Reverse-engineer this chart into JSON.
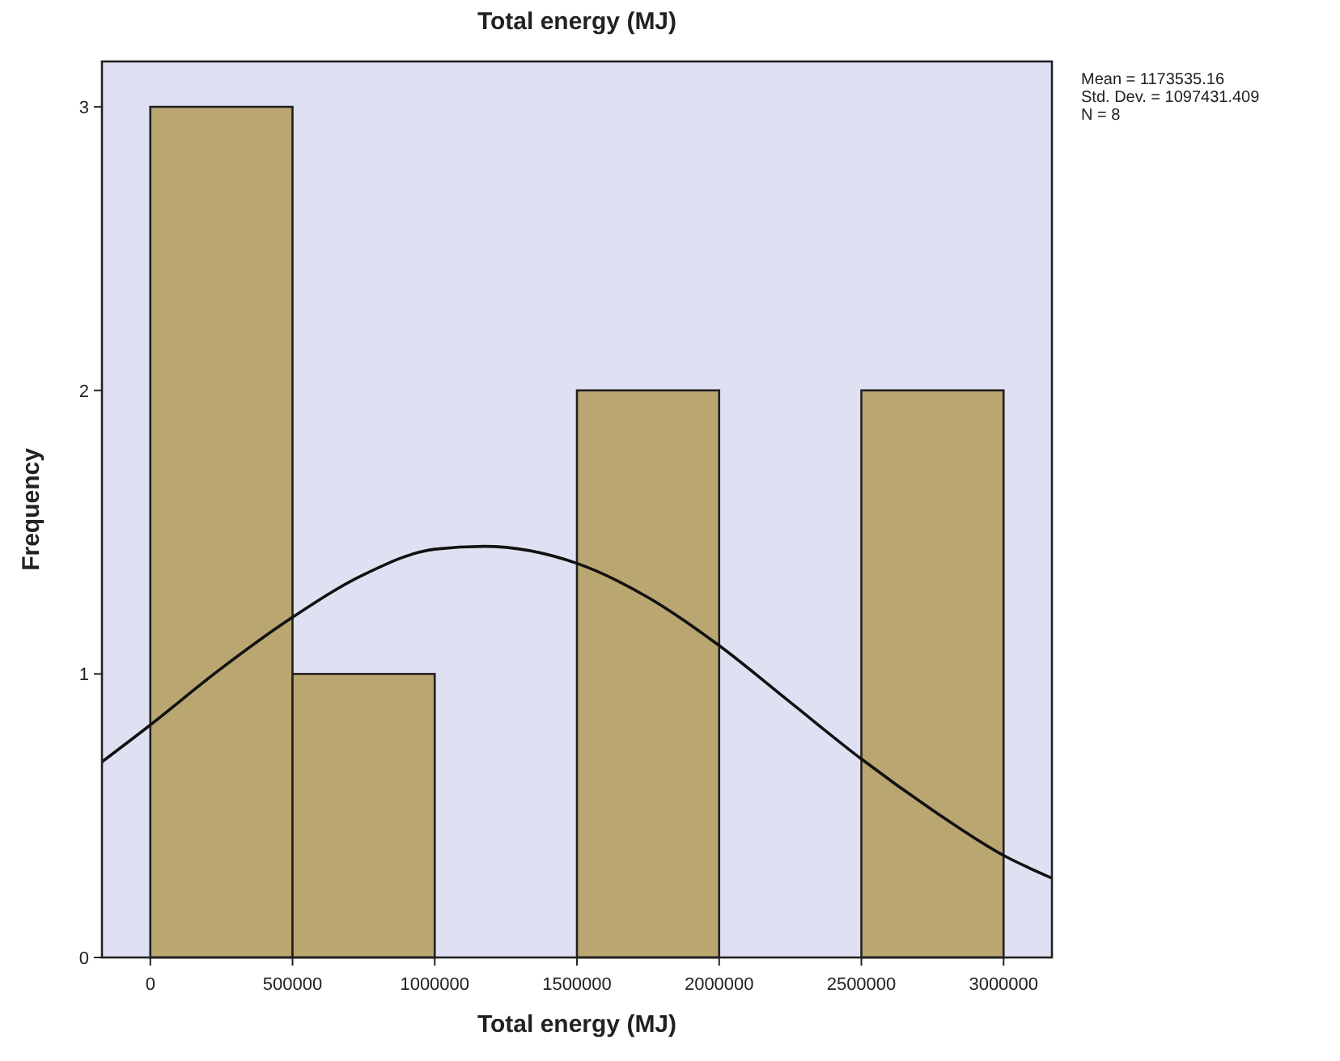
{
  "chart_data": {
    "type": "histogram",
    "title": "Total energy (MJ)",
    "xlabel": "Total energy (MJ)",
    "ylabel": "Frequency",
    "bins": [
      0,
      500000,
      1000000,
      1500000,
      2000000,
      2500000,
      3000000
    ],
    "values": [
      3,
      1,
      0,
      2,
      0,
      2
    ],
    "color": "#b9a670",
    "series": [
      {
        "type": "line",
        "color": "#111111",
        "x": [
          -170000,
          0,
          250000,
          500000,
          750000,
          1000000,
          1173535,
          1500000,
          1750000,
          2000000,
          2250000,
          2500000,
          2750000,
          3000000,
          3170000
        ],
        "values": [
          0.69,
          0.82,
          1.02,
          1.2,
          1.35,
          1.44,
          1.45,
          1.39,
          1.27,
          1.1,
          0.9,
          0.7,
          0.52,
          0.36,
          0.28
        ]
      }
    ],
    "xlim": [
      -170000,
      3170000
    ],
    "xticks": [
      0,
      500000,
      1000000,
      1500000,
      2000000,
      2500000,
      3000000
    ],
    "ylim": [
      0,
      3.16
    ],
    "yticks": [
      0,
      1,
      2,
      3
    ],
    "grid": false,
    "annotations": [
      "Mean = 1173535.16",
      "Std. Dev. = 1097431.409",
      "N = 8"
    ]
  }
}
